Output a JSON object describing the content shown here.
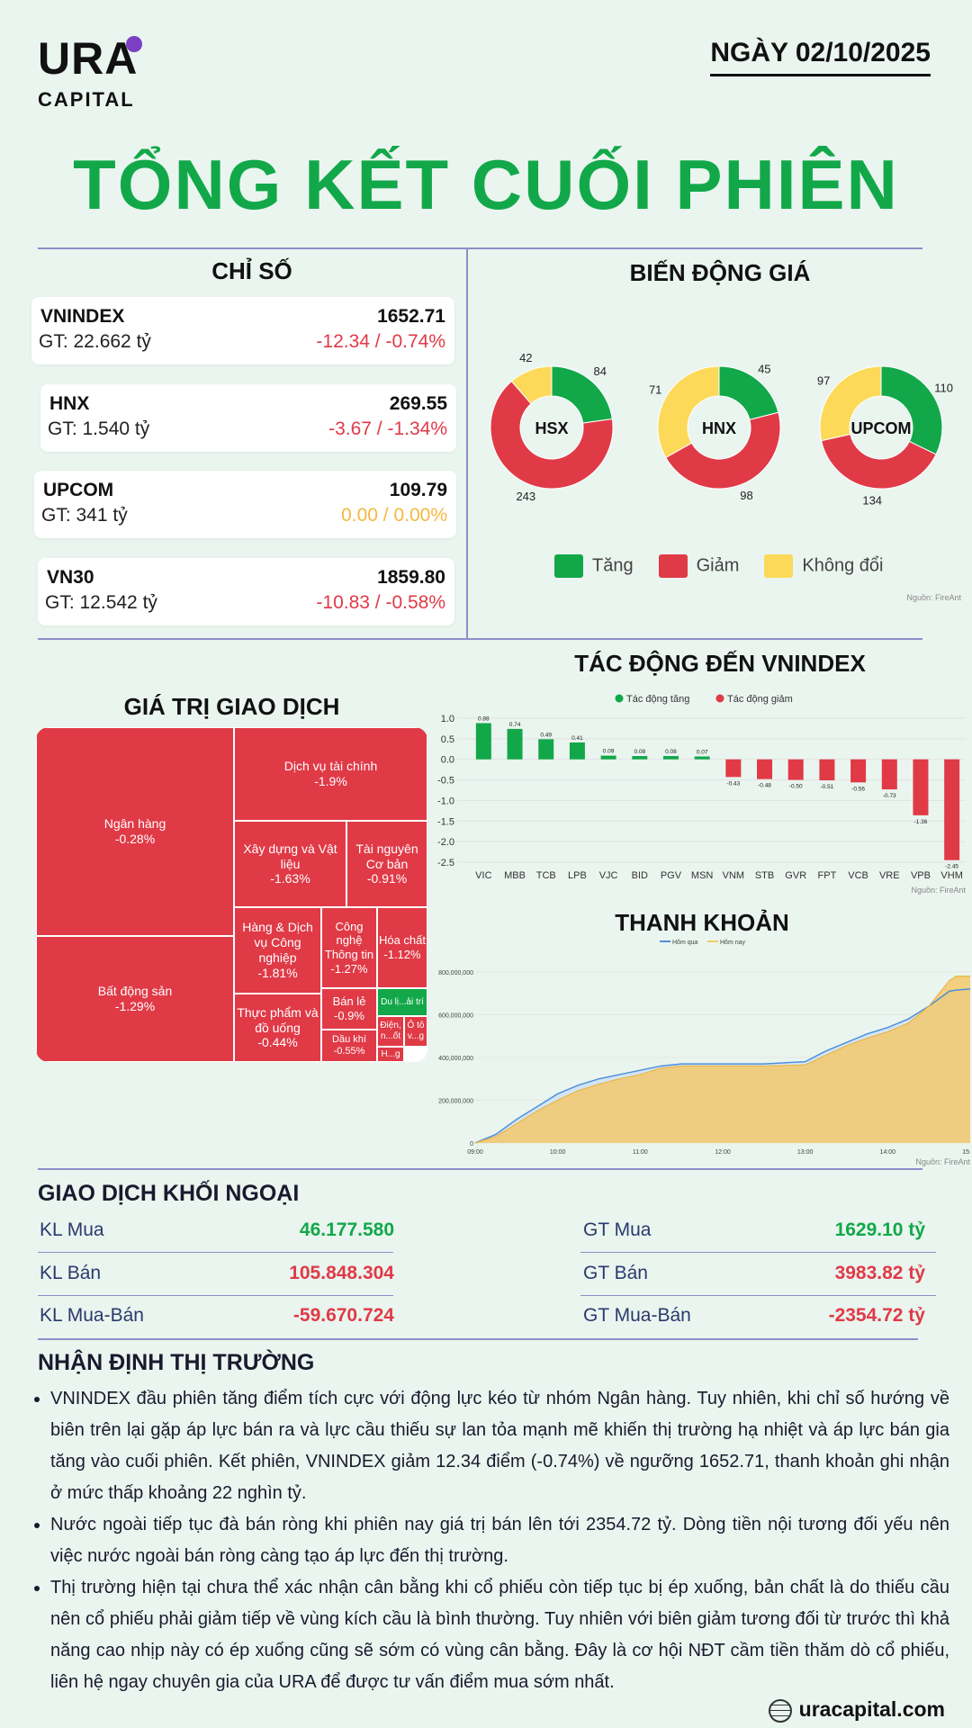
{
  "header": {
    "logo_main": "URA",
    "logo_sub": "CAPITAL",
    "date": "NGÀY 02/10/2025",
    "title": "TỔNG KẾT CUỐI PHIÊN"
  },
  "indices": {
    "title": "CHỈ SỐ",
    "items": [
      {
        "name": "VNINDEX",
        "gt": "GT: 22.662 tỷ",
        "value": "1652.71",
        "change": "-12.34 / -0.74%",
        "status": "down"
      },
      {
        "name": "HNX",
        "gt": "GT: 1.540 tỷ",
        "value": "269.55",
        "change": "-3.67 / -1.34%",
        "status": "down"
      },
      {
        "name": "UPCOM",
        "gt": "GT: 341 tỷ",
        "value": "109.79",
        "change": "0.00 / 0.00%",
        "status": "flat"
      },
      {
        "name": "VN30",
        "gt": "GT: 12.542 tỷ",
        "value": "1859.80",
        "change": "-10.83 / -0.58%",
        "status": "down"
      }
    ]
  },
  "price_movement": {
    "title": "BIẾN ĐỘNG GIÁ",
    "colors": {
      "up": "#12a84a",
      "down": "#e03a47",
      "flat": "#fcd958"
    },
    "legend": {
      "up": "Tăng",
      "down": "Giảm",
      "flat": "Không đổi"
    },
    "source": "Nguồn: FireAnt",
    "donuts": [
      {
        "name": "HSX",
        "up": "84",
        "down": "243",
        "flat": "42",
        "up_n": 84,
        "down_n": 243,
        "flat_n": 42
      },
      {
        "name": "HNX",
        "up": "45",
        "down": "98",
        "flat": "71",
        "up_n": 45,
        "down_n": 98,
        "flat_n": 71
      },
      {
        "name": "UPCOM",
        "up": "110",
        "down": "134",
        "flat": "97",
        "up_n": 110,
        "down_n": 134,
        "flat_n": 97
      }
    ]
  },
  "trade_value": {
    "title": "GIÁ TRỊ GIAO DỊCH",
    "cells": [
      {
        "label": "Ngân hàng",
        "pct": "-0.28%"
      },
      {
        "label": "Bất động sản",
        "pct": "-1.29%"
      },
      {
        "label": "Dịch vụ tài chính",
        "pct": "-1.9%"
      },
      {
        "label": "Xây dựng và Vật liệu",
        "pct": "-1.63%"
      },
      {
        "label": "Tài nguyên Cơ bản",
        "pct": "-0.91%"
      },
      {
        "label": "Hàng & Dịch vụ Công nghiệp",
        "pct": "-1.81%"
      },
      {
        "label": "Công nghệ Thông tin",
        "pct": "-1.27%"
      },
      {
        "label": "Hóa chất",
        "pct": "-1.12%"
      },
      {
        "label": "Thực phẩm và đồ uống",
        "pct": "-0.44%"
      },
      {
        "label": "Bán lẻ",
        "pct": "-0.9%"
      },
      {
        "label": "Du lị...ải trí",
        "pct": ""
      },
      {
        "label": "Điện, n...ốt",
        "pct": ""
      },
      {
        "label": "Ô tô v...g",
        "pct": ""
      },
      {
        "label": "Dầu khí",
        "pct": "-0.55%"
      },
      {
        "label": "H...g",
        "pct": ""
      }
    ]
  },
  "chart_data": [
    {
      "type": "bar",
      "title": "TÁC ĐỘNG ĐẾN VNINDEX",
      "legend": [
        "Tác động tăng",
        "Tác động giảm"
      ],
      "categories": [
        "VIC",
        "MBB",
        "TCB",
        "LPB",
        "VJC",
        "BID",
        "PGV",
        "MSN",
        "VNM",
        "STB",
        "GVR",
        "FPT",
        "VCB",
        "VRE",
        "VPB",
        "VHM"
      ],
      "values": [
        0.88,
        0.74,
        0.49,
        0.41,
        0.09,
        0.08,
        0.08,
        0.07,
        -0.43,
        -0.48,
        -0.5,
        -0.51,
        -0.56,
        -0.73,
        -1.36,
        -2.45
      ],
      "value_labels": [
        "0.88",
        "0.74",
        "0.49",
        "0.41",
        "0.09",
        "0.08",
        "0.08",
        "0.07",
        "-0.43",
        "-0.48",
        "-0.50",
        "-0.51",
        "-0.56",
        "-0.73",
        "-1.36",
        "-2.45"
      ],
      "yticks": [
        "1.0",
        "0.5",
        "0.0",
        "-0.5",
        "-1.0",
        "-1.5",
        "-2.0",
        "-2.5"
      ],
      "ylim": [
        -2.5,
        1.0
      ],
      "colors": {
        "up": "#12a84a",
        "down": "#e03a47"
      },
      "source": "Nguồn: FireAnt"
    },
    {
      "type": "area",
      "title": "THANH KHOẢN",
      "legend": [
        "Hôm qua",
        "Hôm nay"
      ],
      "xticks": [
        "09:00",
        "10:00",
        "11:00",
        "12:00",
        "13:00",
        "14:00",
        "15:00"
      ],
      "yticks": [
        "0",
        "200,000,000",
        "400,000,000",
        "600,000,000",
        "800,000,000"
      ],
      "ylim": [
        0,
        850000000
      ],
      "x": [
        "09:00",
        "09:15",
        "09:30",
        "09:45",
        "10:00",
        "10:15",
        "10:30",
        "10:45",
        "11:00",
        "11:15",
        "11:30",
        "12:00",
        "12:30",
        "13:00",
        "13:15",
        "13:30",
        "13:45",
        "14:00",
        "14:15",
        "14:30",
        "14:45",
        "14:50",
        "15:00"
      ],
      "series": [
        {
          "name": "Hôm qua",
          "values": [
            0,
            40000000,
            110000000,
            170000000,
            230000000,
            270000000,
            300000000,
            320000000,
            340000000,
            360000000,
            370000000,
            370000000,
            370000000,
            380000000,
            430000000,
            470000000,
            510000000,
            540000000,
            580000000,
            640000000,
            710000000,
            715000000,
            720000000
          ]
        },
        {
          "name": "Hôm nay",
          "values": [
            0,
            30000000,
            90000000,
            150000000,
            200000000,
            245000000,
            275000000,
            300000000,
            320000000,
            350000000,
            360000000,
            360000000,
            360000000,
            365000000,
            410000000,
            455000000,
            490000000,
            520000000,
            560000000,
            640000000,
            760000000,
            780000000,
            780000000
          ]
        }
      ],
      "colors": {
        "Hôm qua": "#4f8fd9",
        "Hôm nay": "#f5c96b"
      },
      "source": "Nguồn: FireAnt"
    }
  ],
  "foreign": {
    "title": "GIAO DỊCH KHỐI NGOẠI",
    "left": [
      {
        "label": "KL Mua",
        "value": "46.177.580",
        "color": "green"
      },
      {
        "label": "KL Bán",
        "value": "105.848.304",
        "color": "red"
      },
      {
        "label": "KL Mua-Bán",
        "value": "-59.670.724",
        "color": "red"
      }
    ],
    "right": [
      {
        "label": "GT Mua",
        "value": "1629.10 tỷ",
        "color": "green"
      },
      {
        "label": "GT Bán",
        "value": "3983.82 tỷ",
        "color": "red"
      },
      {
        "label": "GT Mua-Bán",
        "value": "-2354.72 tỷ",
        "color": "red"
      }
    ]
  },
  "commentary": {
    "title": "NHẬN ĐỊNH THỊ TRƯỜNG",
    "bullets": [
      "VNINDEX đầu phiên tăng điểm tích cực với động lực kéo từ nhóm Ngân hàng. Tuy nhiên, khi chỉ số hướng về biên trên lại gặp áp lực bán ra và lực cầu thiếu sự lan tỏa mạnh mẽ khiến thị trường hạ nhiệt và áp lực bán gia tăng vào cuối phiên. Kết phiên, VNINDEX giảm 12.34 điểm (-0.74%) về ngưỡng 1652.71, thanh khoản ghi nhận ở mức thấp khoảng 22 nghìn tỷ.",
      "Nước ngoài tiếp tục đà bán ròng khi phiên nay giá trị bán lên tới 2354.72 tỷ. Dòng tiền nội tương đối yếu nên việc nước ngoài bán ròng càng tạo áp lực đến thị trường.",
      "Thị trường hiện tại chưa thể xác nhận cân bằng khi cổ phiếu còn tiếp tục bị ép xuống, bản chất là do thiếu cầu nên cổ phiếu phải giảm tiếp về vùng kích cầu là bình thường. Tuy nhiên với biên giảm tương đối từ trước thì khả năng cao nhịp này có ép xuống cũng sẽ sớm có vùng cân bằng. Đây là cơ hội NĐT cầm tiền thăm dò cổ phiếu, liên hệ ngay chuyên gia của URA để được tư vấn điểm mua sớm nhất."
    ]
  },
  "footer": {
    "website": "uracapital.com"
  }
}
